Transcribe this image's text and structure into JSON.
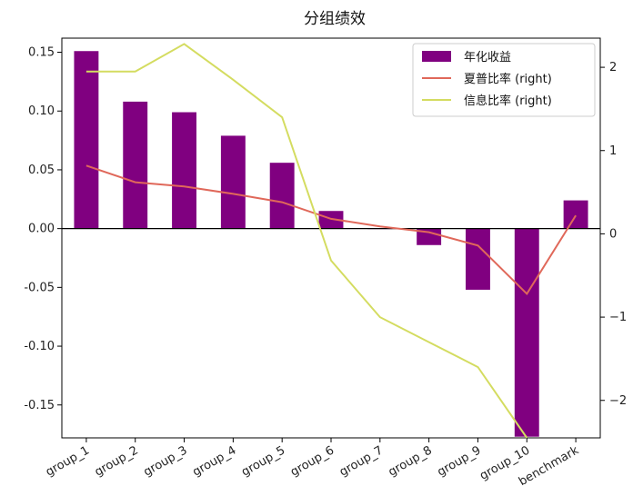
{
  "chart_data": {
    "type": "bar",
    "title": "分组绩效",
    "categories": [
      "group_1",
      "group_2",
      "group_3",
      "group_4",
      "group_5",
      "group_6",
      "group_7",
      "group_8",
      "group_9",
      "group_10",
      "benchmark"
    ],
    "left_axis": {
      "ylim": [
        -0.178,
        0.162
      ],
      "ticks": [
        0.15,
        0.1,
        0.05,
        0.0,
        -0.05,
        -0.1,
        -0.15
      ],
      "tick_labels": [
        "0.15",
        "0.10",
        "0.05",
        "0.00",
        "-0.05",
        "-0.10",
        "-0.15"
      ]
    },
    "right_axis": {
      "ylim": [
        -2.45,
        2.35
      ],
      "ticks": [
        2,
        1,
        0,
        -1,
        -2
      ],
      "tick_labels": [
        "2",
        "1",
        "0",
        "−1",
        "−2"
      ]
    },
    "series": [
      {
        "name": "年化收益",
        "kind": "bar",
        "axis": "left",
        "color": "#800080",
        "values": [
          0.151,
          0.108,
          0.099,
          0.079,
          0.056,
          0.015,
          0.0,
          -0.014,
          -0.052,
          -0.177,
          0.024
        ]
      },
      {
        "name": "夏普比率 (right)",
        "kind": "line",
        "axis": "right",
        "color": "#e0685a",
        "values": [
          0.82,
          0.62,
          0.57,
          0.48,
          0.38,
          0.18,
          0.09,
          0.02,
          -0.14,
          -0.72,
          0.22
        ]
      },
      {
        "name": "信息比率 (right)",
        "kind": "line",
        "axis": "right",
        "color": "#d4dc60",
        "values": [
          1.95,
          1.95,
          2.28,
          1.85,
          1.4,
          -0.32,
          -1.0,
          -1.3,
          -1.6,
          -2.45,
          null
        ]
      }
    ],
    "zero_line": true,
    "grid": false,
    "legend_position": "top-right"
  }
}
